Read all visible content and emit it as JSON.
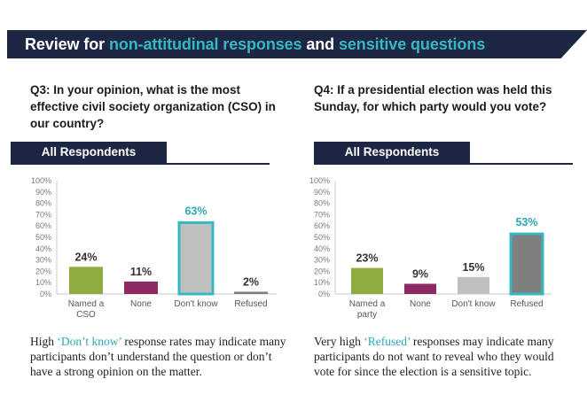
{
  "banner": {
    "part1": "Review for ",
    "part2": "non-attitudinal responses",
    "part3": " and ",
    "part4": "sensitive questions"
  },
  "q3": {
    "question": "Q3: In your opinion, what is the most effective civil society organization (CSO) in our country?",
    "respondents_label": "All Respondents",
    "note_pre": "High ",
    "note_em": "‘Don’t know’",
    "note_post": " response rates may indicate many participants don’t understand the question or don’t have a strong opinion on the matter."
  },
  "q4": {
    "question": "Q4: If a presidential election was held this Sunday, for which party would you vote?",
    "respondents_label": "All Respondents",
    "note_pre": "Very high ",
    "note_em": "‘Refused’",
    "note_post": " responses may indicate many participants do not want to reveal who they would vote for since the election is a sensitive topic."
  },
  "colors": {
    "navy": "#1d2643",
    "teal": "#35b8c4",
    "green": "#8fad3f",
    "purple": "#8c2a63",
    "lightgray": "#bfbfbf",
    "darkgray": "#7f7f7f"
  },
  "chart_data": [
    {
      "type": "bar",
      "categories": [
        "Named a CSO",
        "None",
        "Don't know",
        "Refused"
      ],
      "values": [
        24,
        11,
        63,
        2
      ],
      "value_labels": [
        "24%",
        "11%",
        "63%",
        "2%"
      ],
      "bar_colors": [
        "#8fad3f",
        "#8c2a63",
        "#bfbfbf",
        "#7f7f7f"
      ],
      "highlight_index": 2,
      "yticks": [
        "0%",
        "10%",
        "20%",
        "30%",
        "40%",
        "50%",
        "60%",
        "70%",
        "80%",
        "90%",
        "100%"
      ],
      "ylim": [
        0,
        100
      ],
      "grid": false
    },
    {
      "type": "bar",
      "categories": [
        "Named a party",
        "None",
        "Don't know",
        "Refused"
      ],
      "values": [
        23,
        9,
        15,
        53
      ],
      "value_labels": [
        "23%",
        "9%",
        "15%",
        "53%"
      ],
      "bar_colors": [
        "#8fad3f",
        "#8c2a63",
        "#bfbfbf",
        "#7f7f7f"
      ],
      "highlight_index": 3,
      "yticks": [
        "0%",
        "10%",
        "20%",
        "30%",
        "40%",
        "50%",
        "60%",
        "70%",
        "80%",
        "90%",
        "100%"
      ],
      "ylim": [
        0,
        100
      ],
      "grid": false
    }
  ]
}
